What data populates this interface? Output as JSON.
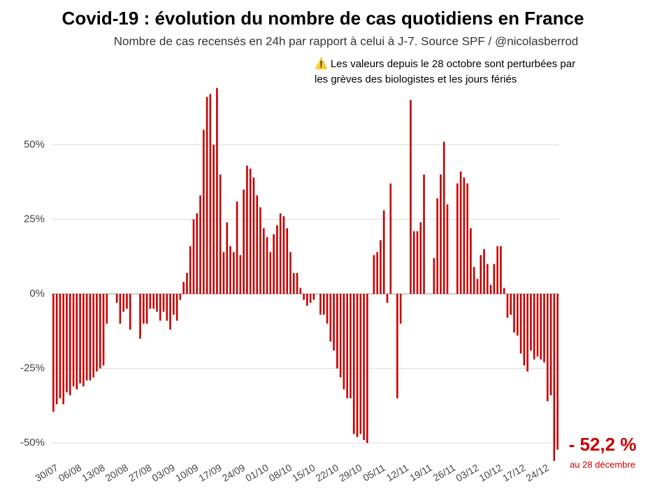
{
  "chart_data": {
    "type": "bar",
    "title": "Covid-19 : évolution du nombre de cas quotidiens en France",
    "subtitle": "Nombre de cas recensés en 24h par rapport à celui à J-7. Source SPF / @nicolasberrod",
    "note": [
      "⚠️ Les valeurs depuis le 28 octobre sont perturbées par",
      "les grèves des biologistes et les jours fériés"
    ],
    "annotation": {
      "value_label": "- 52,2 %",
      "text": "au 28 décembre"
    },
    "color": "#c80000",
    "categories": [
      "30/07",
      null,
      null,
      null,
      null,
      null,
      null,
      "06/08",
      null,
      null,
      null,
      null,
      null,
      null,
      "13/08",
      null,
      null,
      null,
      null,
      null,
      null,
      "20/08",
      null,
      null,
      null,
      null,
      null,
      null,
      "27/08",
      null,
      null,
      null,
      null,
      null,
      null,
      "03/09",
      null,
      null,
      null,
      null,
      null,
      null,
      "10/09",
      null,
      null,
      null,
      null,
      null,
      null,
      "17/09",
      null,
      null,
      null,
      null,
      null,
      null,
      "24/09",
      null,
      null,
      null,
      null,
      null,
      null,
      "01/10",
      null,
      null,
      null,
      null,
      null,
      null,
      "08/10",
      null,
      null,
      null,
      null,
      null,
      null,
      "15/10",
      null,
      null,
      null,
      null,
      null,
      null,
      "22/10",
      null,
      null,
      null,
      null,
      null,
      null,
      "29/10",
      null,
      null,
      null,
      null,
      null,
      null,
      "05/11",
      null,
      null,
      null,
      null,
      null,
      null,
      "12/11",
      null,
      null,
      null,
      null,
      null,
      null,
      "19/11",
      null,
      null,
      null,
      null,
      null,
      null,
      "26/11",
      null,
      null,
      null,
      null,
      null,
      null,
      "03/12",
      null,
      null,
      null,
      null,
      null,
      null,
      "10/12",
      null,
      null,
      null,
      null,
      null,
      null,
      "17/12",
      null,
      null,
      null,
      null,
      null,
      null,
      "24/12",
      null,
      null,
      null,
      null
    ],
    "values": [
      -39.5,
      -37,
      -35,
      -37,
      -33,
      -34,
      -31,
      -32,
      -30,
      -31,
      -29,
      -29,
      -28,
      -26,
      -25,
      -24,
      -10,
      0,
      0,
      -3,
      -10,
      -6,
      -5,
      -12,
      0,
      0,
      -15,
      -10,
      -10,
      -5,
      -5,
      -6,
      -9,
      -6,
      -9,
      -12,
      -7,
      -9,
      -2,
      4,
      7,
      16,
      25,
      27,
      33,
      55,
      66,
      67,
      50,
      69,
      40,
      14,
      24,
      16,
      14,
      31,
      13,
      35,
      43,
      42,
      39,
      33,
      29,
      22,
      19,
      14,
      20,
      23,
      27,
      26,
      22,
      14,
      7,
      7,
      2,
      -2,
      -4,
      -3,
      -2,
      0,
      -7,
      -7,
      -10,
      -16,
      -19,
      -25,
      -28,
      -32,
      -35,
      -35,
      -47,
      -48,
      -47,
      -49,
      -50,
      0,
      13,
      14,
      18,
      28,
      -3,
      37,
      0,
      -35,
      -10,
      0,
      0,
      65,
      21,
      21,
      24,
      40,
      0,
      0,
      12,
      32,
      40,
      51,
      30,
      0,
      0,
      37,
      41,
      39,
      37,
      22,
      9,
      5,
      13,
      15,
      10,
      3,
      10,
      16,
      16,
      2,
      -8,
      -7,
      -13,
      -14,
      -20,
      -24,
      -26,
      -19,
      -22,
      -21,
      -22,
      -23,
      -36,
      -34,
      -56,
      -52.2
    ],
    "ylim": [
      -57,
      72
    ],
    "yticks": [
      {
        "value": -50,
        "label": "-50%"
      },
      {
        "value": -25,
        "label": "-25%"
      },
      {
        "value": 0,
        "label": "0%"
      },
      {
        "value": 25,
        "label": "25%"
      },
      {
        "value": 50,
        "label": "50%"
      }
    ],
    "grid": true
  }
}
